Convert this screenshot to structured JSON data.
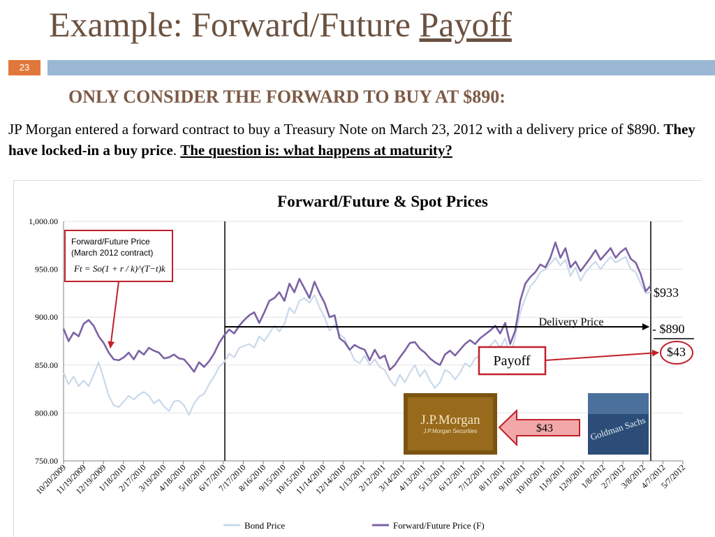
{
  "slide": {
    "title_main": "Example: Forward/Future ",
    "title_underlined": "Payoff",
    "number": "23",
    "subtitle": "ONLY CONSIDER THE FORWARD TO BUY AT $890:",
    "body_text": "JP Morgan entered a forward contract to buy a Treasury Note on March 23, 2012 with a delivery price of $890. ",
    "body_bold": "They have locked-in a buy price",
    "body_sep": ". ",
    "body_underlined": "The question is: what happens at maturity?"
  },
  "annotations": {
    "formula_title1": "Forward/Future Price",
    "formula_title2": "(March 2012 contract)",
    "formula": "Ft = So(1 + r / k)^(T−t)k",
    "delivery_price": "Delivery Price",
    "spot_at_maturity": "$933",
    "minus_delivery": "- $890",
    "payoff_value": "$43",
    "payoff_label": "Payoff",
    "arrow_value": "$43",
    "jp_logo_line1": "J.P.Morgan",
    "jp_logo_line2": "J.P.Morgan Securities",
    "gs_logo": "Goldman Sachs"
  },
  "colors": {
    "title": "#6b5140",
    "subtitle": "#7d5a46",
    "slide_number_bg": "#e1773a",
    "accent_bar": "#9ab7d3",
    "forward_series": "#7b62a4",
    "bond_series": "#c9d9ea",
    "highlight_red": "#c0202a",
    "arrow_fill": "#f2a8a8"
  },
  "chart_data": {
    "type": "line",
    "title": "Forward/Future & Spot Prices",
    "ylim": [
      750,
      1000
    ],
    "y_ticks": [
      "750.00",
      "800.00",
      "850.00",
      "900.00",
      "950.00",
      "1,000.00"
    ],
    "x_ticks": [
      "10/20/2009",
      "11/19/2009",
      "12/19/2009",
      "1/18/2010",
      "2/17/2010",
      "3/19/2010",
      "4/18/2010",
      "5/18/2010",
      "6/17/2010",
      "7/17/2010",
      "8/16/2010",
      "9/15/2010",
      "10/15/2010",
      "11/14/2010",
      "12/14/2010",
      "1/13/2011",
      "2/12/2011",
      "3/14/2011",
      "4/13/2011",
      "5/13/2011",
      "6/12/2011",
      "7/12/2011",
      "8/11/2011",
      "9/10/2011",
      "10/10/2011",
      "11/9/2011",
      "12/9/2011",
      "1/8/2012",
      "2/7/2012",
      "3/8/2012",
      "4/7/2012",
      "5/7/2012"
    ],
    "grid": true,
    "legend_position": "bottom",
    "delivery_price": 890,
    "contract_start_date": "7/17/2010",
    "maturity_date": "3/23/2012",
    "series": [
      {
        "name": "Bond Price",
        "values": [
          842,
          830,
          838,
          828,
          834,
          828,
          840,
          853,
          836,
          818,
          808,
          806,
          812,
          818,
          814,
          819,
          822,
          818,
          810,
          814,
          807,
          802,
          812,
          813,
          808,
          798,
          810,
          817,
          820,
          830,
          838,
          848,
          853,
          862,
          858,
          868,
          870,
          872,
          868,
          880,
          875,
          883,
          891,
          885,
          893,
          910,
          904,
          917,
          920,
          915,
          923,
          910,
          900,
          886,
          892,
          882,
          878,
          866,
          855,
          852,
          860,
          850,
          856,
          848,
          845,
          835,
          828,
          840,
          832,
          842,
          850,
          838,
          845,
          834,
          826,
          832,
          845,
          842,
          835,
          842,
          852,
          848,
          857,
          860,
          864,
          870,
          876,
          868,
          878,
          858,
          880,
          905,
          920,
          932,
          938,
          947,
          950,
          956,
          962,
          954,
          960,
          943,
          952,
          938,
          947,
          953,
          958,
          950,
          957,
          963,
          957,
          960,
          963,
          950,
          947,
          935,
          925,
          926
        ]
      },
      {
        "name": "Forward/Future Price (F)",
        "values": [
          888,
          875,
          884,
          880,
          893,
          897,
          891,
          880,
          873,
          863,
          856,
          855,
          858,
          863,
          856,
          865,
          861,
          868,
          865,
          863,
          857,
          858,
          861,
          857,
          856,
          850,
          843,
          853,
          848,
          854,
          862,
          873,
          881,
          887,
          883,
          891,
          897,
          902,
          905,
          894,
          905,
          917,
          920,
          926,
          917,
          935,
          926,
          940,
          930,
          920,
          937,
          925,
          915,
          900,
          902,
          878,
          874,
          866,
          871,
          868,
          866,
          855,
          866,
          857,
          860,
          845,
          850,
          858,
          865,
          873,
          874,
          867,
          863,
          857,
          853,
          850,
          861,
          865,
          860,
          866,
          872,
          876,
          872,
          878,
          882,
          886,
          891,
          883,
          894,
          872,
          886,
          917,
          935,
          942,
          947,
          955,
          952,
          962,
          978,
          962,
          972,
          952,
          958,
          948,
          955,
          962,
          970,
          960,
          966,
          972,
          962,
          968,
          972,
          961,
          957,
          945,
          927,
          933
        ]
      }
    ]
  },
  "legend": {
    "bond_label": "Bond Price",
    "forward_label": "Forward/Future Price (F)"
  }
}
